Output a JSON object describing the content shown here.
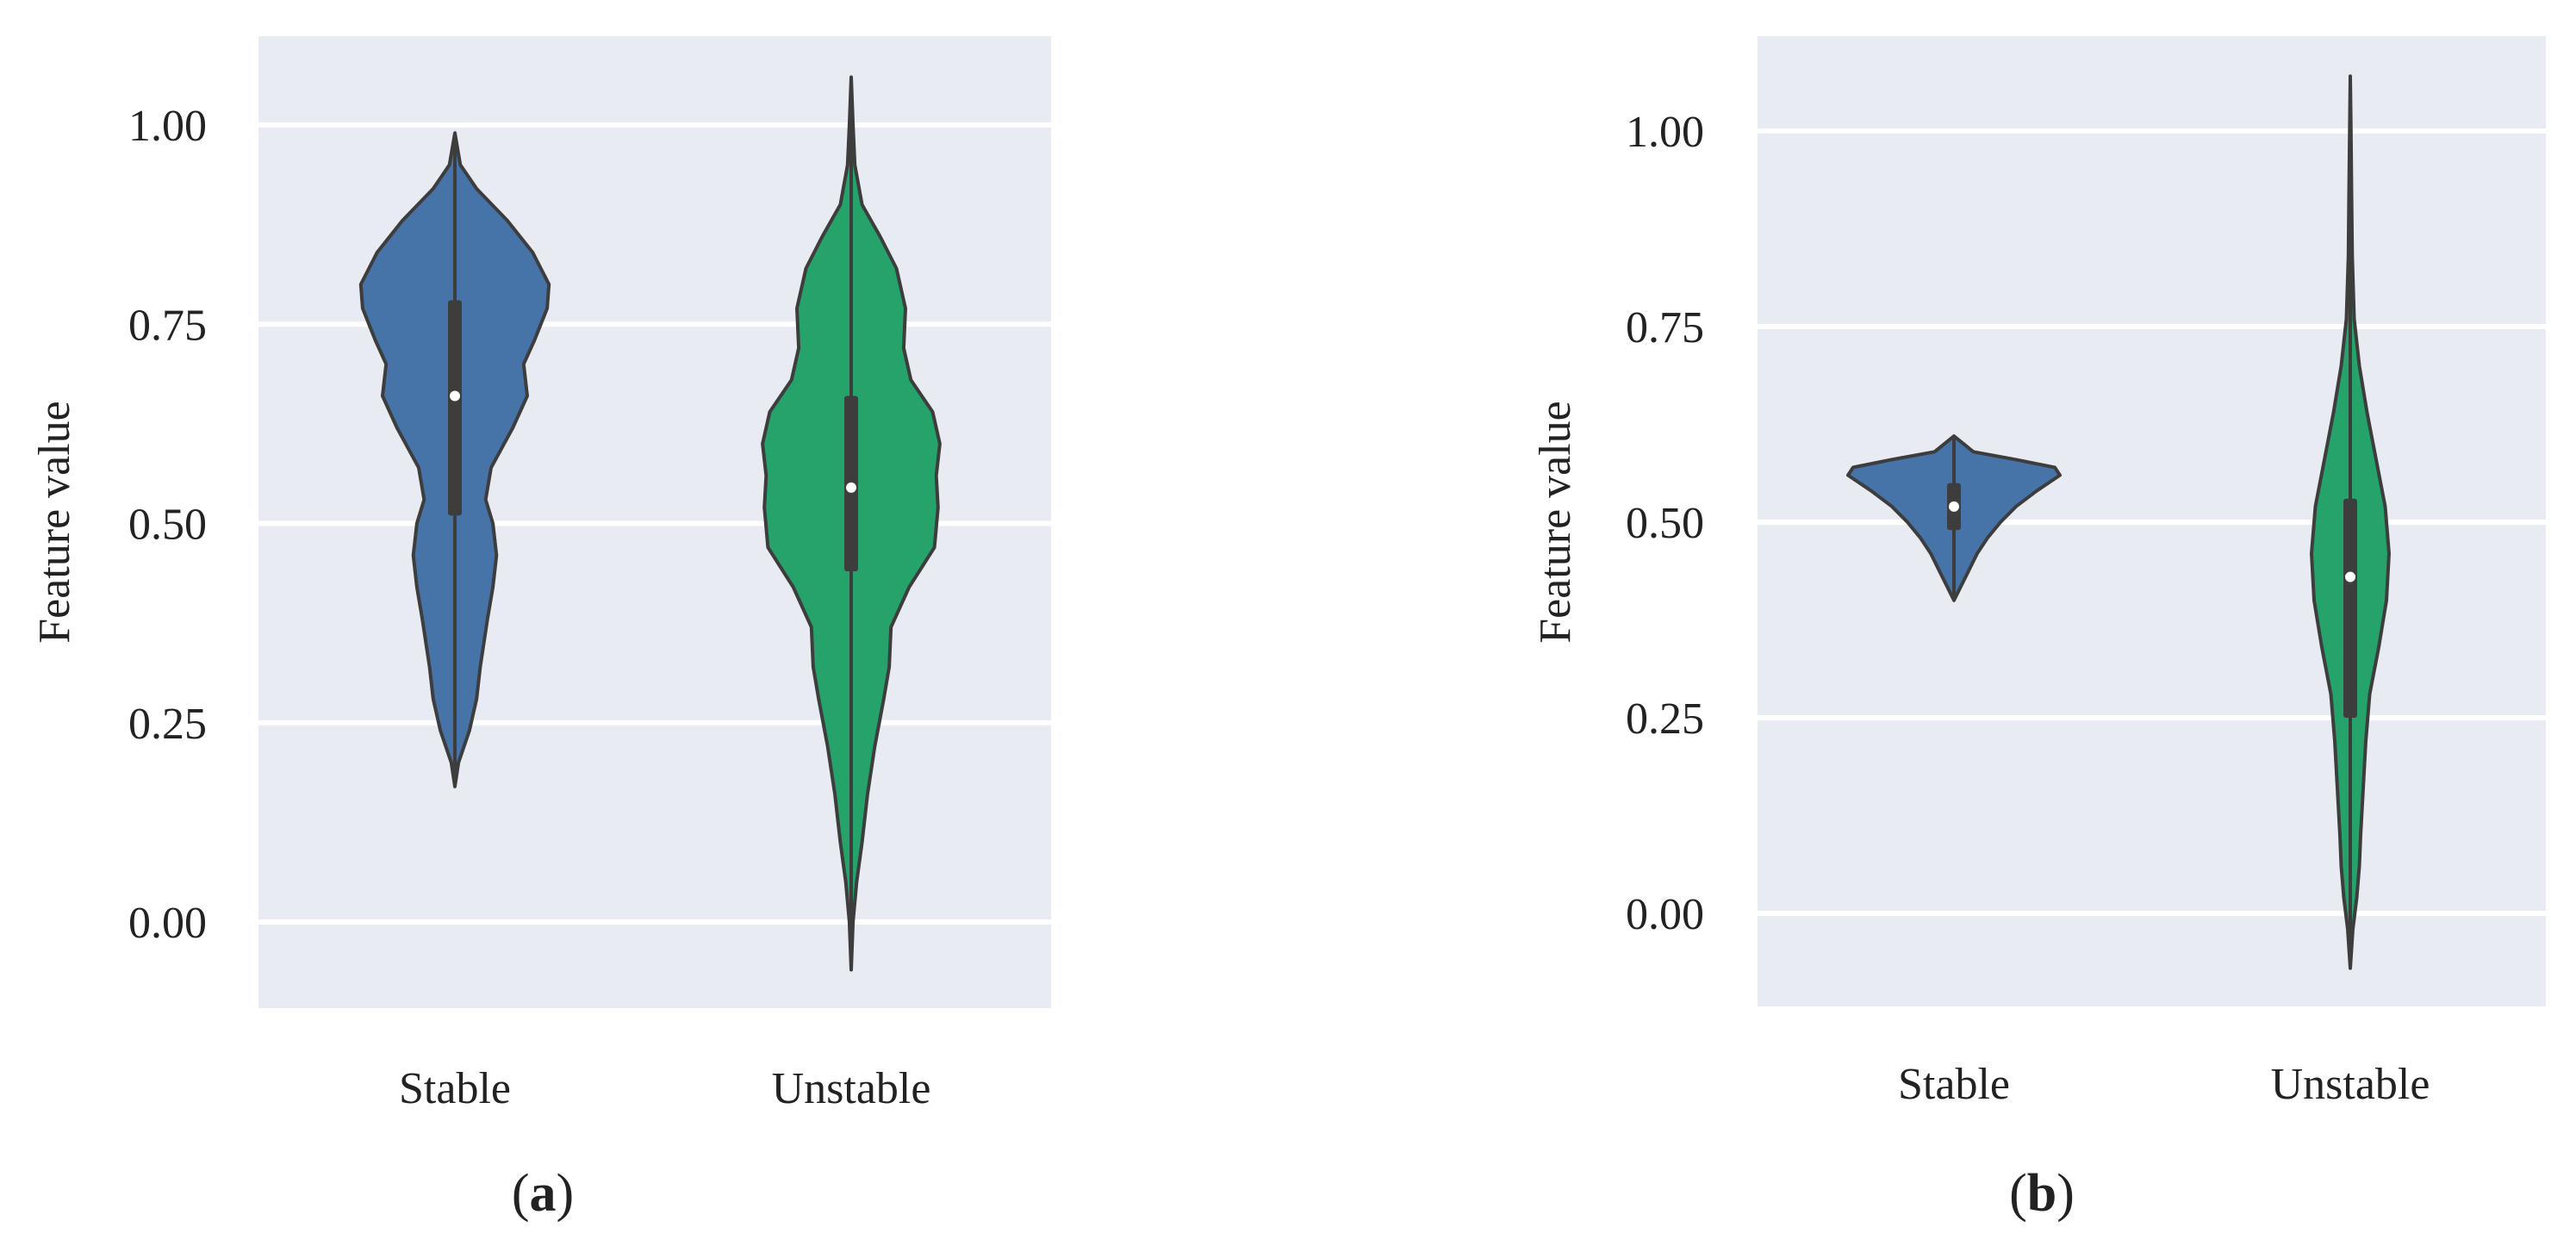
{
  "colors": {
    "background": "#e9ebf3",
    "gridline": "#ffffff",
    "stable": "#4674a8",
    "unstable": "#26a36b",
    "outline": "#3d3d3d",
    "box": "#3d3d3d",
    "median": "#ffffff"
  },
  "chart_data": [
    {
      "type": "violin",
      "panel_label": {
        "open": "(",
        "letter": "a",
        "close": ")"
      },
      "ylabel": "Feature value",
      "ylim": [
        -0.11,
        1.11
      ],
      "yticks": [
        0.0,
        0.25,
        0.5,
        0.75,
        1.0
      ],
      "ytick_labels": [
        "0.00",
        "0.25",
        "0.50",
        "0.75",
        "1.00"
      ],
      "grid": true,
      "categories": [
        "Stable",
        "Unstable"
      ],
      "series": [
        {
          "category": "Stable",
          "color": "stable",
          "range": [
            0.17,
            0.99
          ],
          "box": [
            0.51,
            0.78
          ],
          "median": 0.66,
          "density": [
            [
              0.17,
              0.0
            ],
            [
              0.2,
              0.02
            ],
            [
              0.24,
              0.08
            ],
            [
              0.28,
              0.12
            ],
            [
              0.32,
              0.14
            ],
            [
              0.38,
              0.18
            ],
            [
              0.42,
              0.21
            ],
            [
              0.46,
              0.23
            ],
            [
              0.5,
              0.21
            ],
            [
              0.53,
              0.17
            ],
            [
              0.57,
              0.2
            ],
            [
              0.62,
              0.32
            ],
            [
              0.66,
              0.4
            ],
            [
              0.7,
              0.38
            ],
            [
              0.73,
              0.44
            ],
            [
              0.77,
              0.51
            ],
            [
              0.8,
              0.52
            ],
            [
              0.84,
              0.43
            ],
            [
              0.88,
              0.29
            ],
            [
              0.92,
              0.12
            ],
            [
              0.95,
              0.03
            ],
            [
              0.99,
              0.0
            ]
          ]
        },
        {
          "category": "Unstable",
          "color": "unstable",
          "range": [
            -0.06,
            1.06
          ],
          "box": [
            0.44,
            0.66
          ],
          "median": 0.545,
          "density": [
            [
              -0.06,
              0.0
            ],
            [
              0.0,
              0.01
            ],
            [
              0.05,
              0.03
            ],
            [
              0.1,
              0.06
            ],
            [
              0.16,
              0.09
            ],
            [
              0.22,
              0.13
            ],
            [
              0.28,
              0.18
            ],
            [
              0.32,
              0.21
            ],
            [
              0.37,
              0.22
            ],
            [
              0.42,
              0.32
            ],
            [
              0.47,
              0.46
            ],
            [
              0.52,
              0.48
            ],
            [
              0.56,
              0.47
            ],
            [
              0.6,
              0.49
            ],
            [
              0.64,
              0.45
            ],
            [
              0.68,
              0.33
            ],
            [
              0.72,
              0.29
            ],
            [
              0.77,
              0.3
            ],
            [
              0.82,
              0.25
            ],
            [
              0.86,
              0.16
            ],
            [
              0.9,
              0.06
            ],
            [
              0.95,
              0.02
            ],
            [
              1.0,
              0.01
            ],
            [
              1.06,
              0.0
            ]
          ]
        }
      ]
    },
    {
      "type": "violin",
      "panel_label": {
        "open": "(",
        "letter": "b",
        "close": ")"
      },
      "ylabel": "Feature value",
      "ylim": [
        -0.12,
        1.12
      ],
      "yticks": [
        0.0,
        0.25,
        0.5,
        0.75,
        1.0
      ],
      "ytick_labels": [
        "0.00",
        "0.25",
        "0.50",
        "0.75",
        "1.00"
      ],
      "grid": true,
      "categories": [
        "Stable",
        "Unstable"
      ],
      "series": [
        {
          "category": "Stable",
          "color": "stable",
          "range": [
            0.4,
            0.61
          ],
          "box": [
            0.49,
            0.55
          ],
          "median": 0.52,
          "density": [
            [
              0.4,
              0.0
            ],
            [
              0.42,
              0.06
            ],
            [
              0.44,
              0.12
            ],
            [
              0.46,
              0.18
            ],
            [
              0.48,
              0.26
            ],
            [
              0.5,
              0.36
            ],
            [
              0.52,
              0.48
            ],
            [
              0.54,
              0.64
            ],
            [
              0.56,
              0.82
            ],
            [
              0.57,
              0.78
            ],
            [
              0.58,
              0.48
            ],
            [
              0.59,
              0.15
            ],
            [
              0.61,
              0.0
            ]
          ]
        },
        {
          "category": "Unstable",
          "color": "unstable",
          "range": [
            -0.07,
            1.07
          ],
          "box": [
            0.25,
            0.53
          ],
          "median": 0.43,
          "density": [
            [
              -0.07,
              0.0
            ],
            [
              -0.02,
              0.02
            ],
            [
              0.02,
              0.05
            ],
            [
              0.06,
              0.07
            ],
            [
              0.1,
              0.08
            ],
            [
              0.16,
              0.1
            ],
            [
              0.22,
              0.12
            ],
            [
              0.28,
              0.15
            ],
            [
              0.34,
              0.22
            ],
            [
              0.4,
              0.28
            ],
            [
              0.46,
              0.3
            ],
            [
              0.52,
              0.27
            ],
            [
              0.58,
              0.2
            ],
            [
              0.64,
              0.13
            ],
            [
              0.7,
              0.07
            ],
            [
              0.76,
              0.03
            ],
            [
              0.84,
              0.015
            ],
            [
              0.92,
              0.01
            ],
            [
              1.0,
              0.005
            ],
            [
              1.07,
              0.0
            ]
          ]
        }
      ]
    }
  ]
}
